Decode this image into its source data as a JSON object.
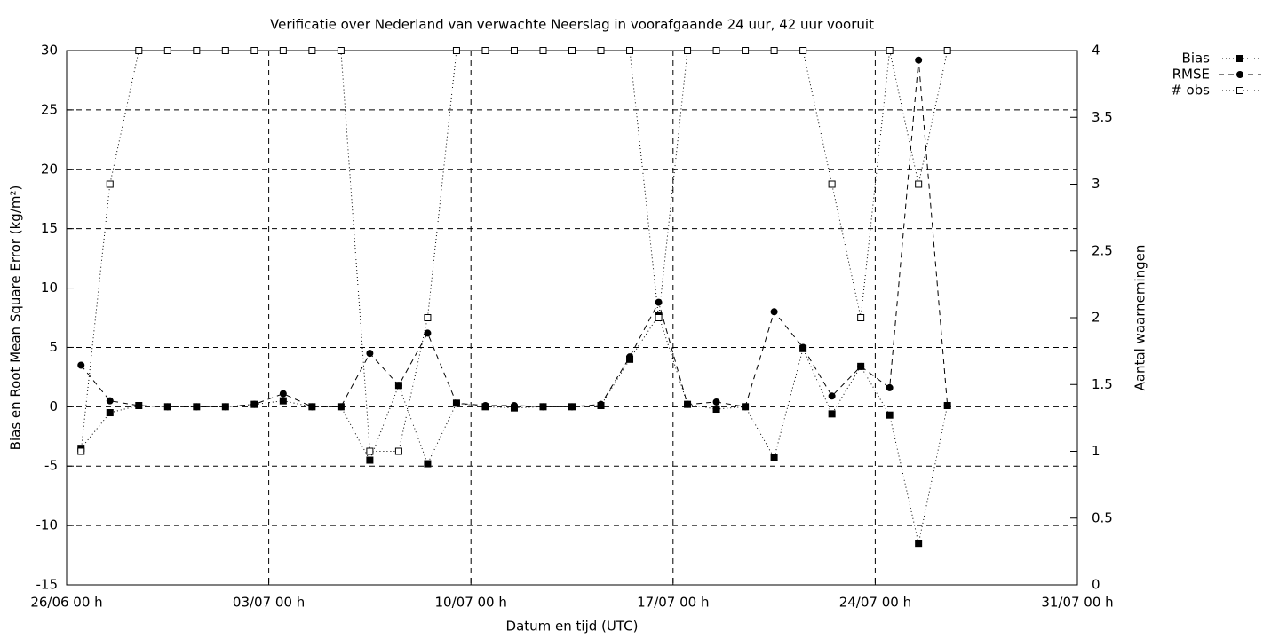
{
  "chart_data": {
    "type": "line",
    "title": "Verificatie over Nederland van verwachte Neerslag in voorafgaande 24 uur, 42 uur vooruit",
    "xlabel": "Datum en tijd (UTC)",
    "ylabel": "Bias en Root Mean Square Error (kg/m²)",
    "y2label": "Aantal waarnemingen",
    "x": [
      "26/06 12 h",
      "27/06 12 h",
      "28/06 12 h",
      "29/06 12 h",
      "30/06 12 h",
      "01/07 12 h",
      "02/07 12 h",
      "03/07 12 h",
      "04/07 12 h",
      "05/07 12 h",
      "06/07 12 h",
      "07/07 12 h",
      "08/07 12 h",
      "09/07 12 h",
      "10/07 12 h",
      "11/07 12 h",
      "12/07 12 h",
      "13/07 12 h",
      "14/07 12 h",
      "15/07 12 h",
      "16/07 12 h",
      "17/07 12 h",
      "18/07 12 h",
      "19/07 12 h",
      "20/07 12 h",
      "21/07 12 h",
      "22/07 12 h",
      "23/07 12 h",
      "24/07 12 h",
      "25/07 12 h",
      "26/07 12 h"
    ],
    "xlim": [
      "26/06 00 h",
      "31/07 00 h"
    ],
    "xticks": [
      "26/06 00 h",
      "03/07 00 h",
      "10/07 00 h",
      "17/07 00 h",
      "24/07 00 h",
      "31/07 00 h"
    ],
    "ylim": [
      -15,
      30
    ],
    "yticks": [
      -15,
      -10,
      -5,
      0,
      5,
      10,
      15,
      20,
      25,
      30
    ],
    "y2lim": [
      0,
      4
    ],
    "y2ticks": [
      0,
      0.5,
      1,
      1.5,
      2,
      2.5,
      3,
      3.5,
      4
    ],
    "grid": true,
    "legend": "top-right-outside",
    "series": [
      {
        "name": "Bias",
        "color": "#000000",
        "dash": "dotted",
        "marker": "square",
        "filled": true,
        "values": [
          -3.5,
          -0.5,
          0.1,
          0,
          0,
          0,
          0.2,
          0.5,
          0,
          0,
          -4.5,
          1.8,
          -4.8,
          0.3,
          0,
          -0.1,
          0,
          0,
          0.1,
          4.0,
          7.7,
          0.2,
          -0.2,
          0,
          -4.3,
          4.9,
          -0.6,
          3.4,
          -0.7,
          -11.5,
          0.1
        ]
      },
      {
        "name": "RMSE",
        "color": "#000000",
        "dash": "dashed",
        "marker": "circle",
        "filled": true,
        "values": [
          3.5,
          0.5,
          0.1,
          0,
          0,
          0,
          0.2,
          1.1,
          0,
          0,
          4.5,
          1.8,
          6.2,
          0.3,
          0.1,
          0.1,
          0,
          0,
          0.2,
          4.2,
          8.8,
          0.2,
          0.4,
          0,
          8.0,
          5.0,
          0.9,
          3.4,
          1.6,
          29.2,
          0.1
        ]
      },
      {
        "name": "# obs",
        "color": "#000000",
        "dash": "dotted",
        "marker": "square",
        "filled": false,
        "axis": "y2",
        "values": [
          1,
          3,
          4,
          4,
          4,
          4,
          4,
          4,
          4,
          4,
          1,
          1,
          2,
          4,
          4,
          4,
          4,
          4,
          4,
          4,
          2,
          4,
          4,
          4,
          4,
          4,
          3,
          2,
          4,
          3,
          4
        ]
      }
    ]
  }
}
